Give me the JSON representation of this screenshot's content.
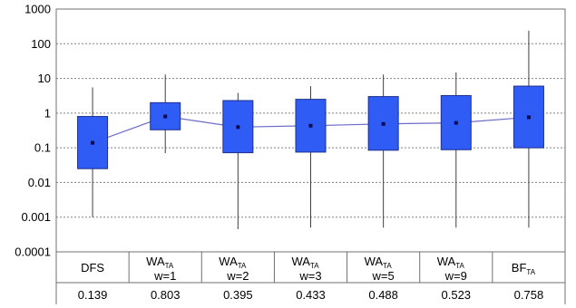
{
  "chart_data": {
    "type": "box",
    "y_scale": "log",
    "ylim": [
      0.0001,
      1000
    ],
    "grid": "dotted horizontal",
    "yticks": [
      "1000",
      "100",
      "10",
      "1",
      "0.1",
      "0.01",
      "0.001",
      "0.0001"
    ],
    "yticks_values": [
      1000,
      100,
      10,
      1,
      0.1,
      0.01,
      0.001,
      0.0001
    ],
    "categories": [
      {
        "main": "DFS",
        "sub": "",
        "line2": ""
      },
      {
        "main": "WA",
        "sub": "TA",
        "line2": "w=1"
      },
      {
        "main": "WA",
        "sub": "TA",
        "line2": "w=2"
      },
      {
        "main": "WA",
        "sub": "TA",
        "line2": "w=3"
      },
      {
        "main": "WA",
        "sub": "TA",
        "line2": "w=5"
      },
      {
        "main": "WA",
        "sub": "TA",
        "line2": "w=9"
      },
      {
        "main": "BF",
        "sub": "TA",
        "line2": ""
      }
    ],
    "mean_labels": [
      "0.139",
      "0.803",
      "0.395",
      "0.433",
      "0.488",
      "0.523",
      "0.758"
    ],
    "boxes": [
      {
        "whisker_low": 0.001,
        "q1": 0.025,
        "mean": 0.139,
        "q3": 0.8,
        "whisker_high": 5.5
      },
      {
        "whisker_low": 0.07,
        "q1": 0.33,
        "mean": 0.803,
        "q3": 2.0,
        "whisker_high": 13
      },
      {
        "whisker_low": 0.00045,
        "q1": 0.072,
        "mean": 0.395,
        "q3": 2.3,
        "whisker_high": 3.8
      },
      {
        "whisker_low": 0.0005,
        "q1": 0.075,
        "mean": 0.433,
        "q3": 2.5,
        "whisker_high": 6
      },
      {
        "whisker_low": 0.0005,
        "q1": 0.085,
        "mean": 0.488,
        "q3": 3.0,
        "whisker_high": 13
      },
      {
        "whisker_low": 0.0005,
        "q1": 0.088,
        "mean": 0.523,
        "q3": 3.2,
        "whisker_high": 15
      },
      {
        "whisker_low": 0.0005,
        "q1": 0.1,
        "mean": 0.758,
        "q3": 6.0,
        "whisker_high": 240
      }
    ],
    "colors": {
      "box_fill": "#2e5cf5",
      "box_stroke": "#1f2f8c",
      "mean_marker": "#0a0a50",
      "mean_line": "#6c6cc8",
      "whisker": "#404040",
      "grid": "#808080",
      "frame": "#707070"
    }
  }
}
